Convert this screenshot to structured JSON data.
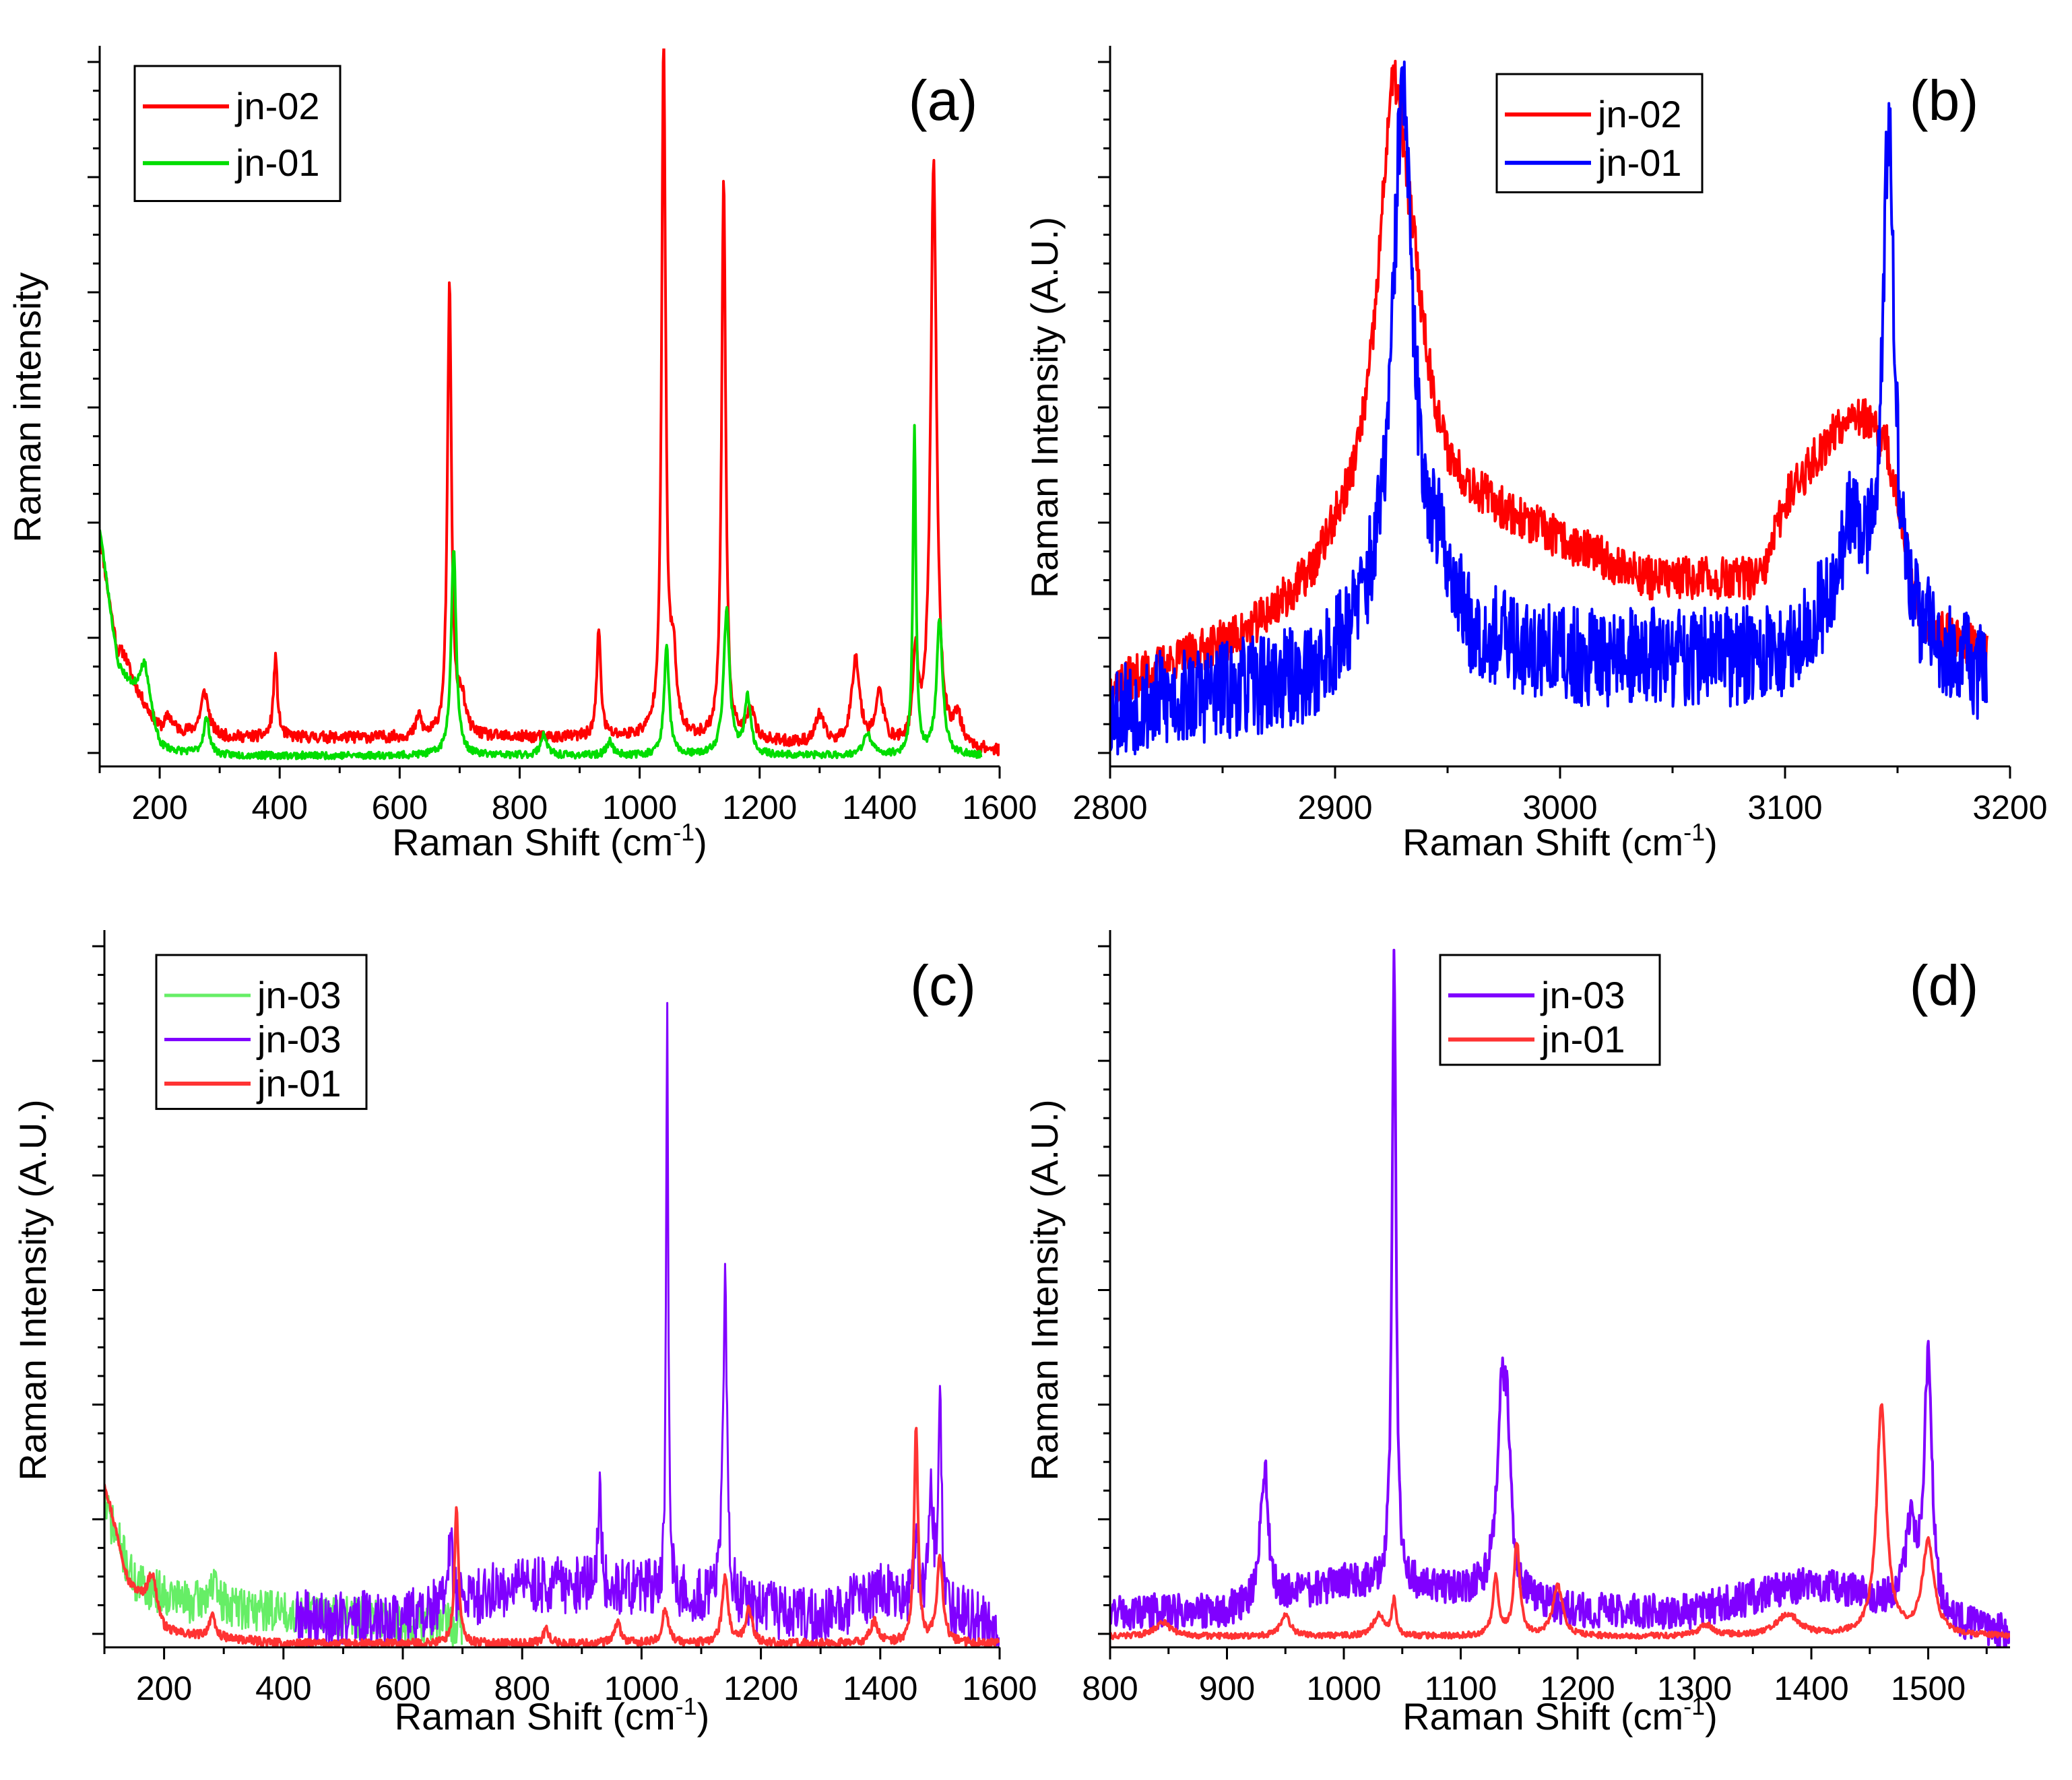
{
  "chart_data": [
    {
      "type": "line",
      "panel_label": "(a)",
      "xlabel": "Raman Shift (cm",
      "xlabel_sup": "-1",
      "xlabel_close": ")",
      "ylabel": "Raman intensity",
      "xlim": [
        100,
        1600
      ],
      "ylim": [
        0,
        100
      ],
      "xticks": [
        200,
        400,
        600,
        800,
        1000,
        1200,
        1400,
        1600
      ],
      "xtick_labels": [
        "200",
        "400",
        "600",
        "800",
        "1000",
        "1200",
        "1400",
        "1600"
      ],
      "legend_position": "top-left",
      "series": [
        {
          "name": "jn-02",
          "color": "#ff0000",
          "width": 4,
          "x_range": [
            100,
            1600
          ],
          "noise": 0.8,
          "seed": 11,
          "baseline": [
            [
              100,
              32
            ],
            [
              130,
              14
            ],
            [
              200,
              5
            ],
            [
              300,
              4
            ],
            [
              600,
              4
            ],
            [
              1000,
              4
            ],
            [
              1600,
              2
            ]
          ],
          "peaks": [
            [
              140,
              3,
              15
            ],
            [
              215,
              2,
              8
            ],
            [
              275,
              6,
              8
            ],
            [
              393,
              11,
              4
            ],
            [
              632,
              3,
              5
            ],
            [
              683,
              63,
              4
            ],
            [
              703,
              5,
              8
            ],
            [
              932,
              15,
              4
            ],
            [
              1040,
              96,
              4
            ],
            [
              1056,
              10,
              6
            ],
            [
              1140,
              79,
              4
            ],
            [
              1185,
              4,
              8
            ],
            [
              1300,
              4,
              8
            ],
            [
              1360,
              12,
              8
            ],
            [
              1400,
              7,
              8
            ],
            [
              1460,
              12,
              5
            ],
            [
              1490,
              81,
              6
            ],
            [
              1530,
              4,
              8
            ]
          ]
        },
        {
          "name": "jn-01",
          "color": "#00dd00",
          "width": 4,
          "x_range": [
            100,
            1570
          ],
          "noise": 0.5,
          "seed": 23,
          "baseline": [
            [
              100,
              33
            ],
            [
              130,
              14
            ],
            [
              200,
              2
            ],
            [
              300,
              1.5
            ],
            [
              1570,
              1.5
            ]
          ],
          "peaks": [
            [
              175,
              8,
              12
            ],
            [
              278,
              5,
              6
            ],
            [
              690,
              29,
              5
            ],
            [
              840,
              3,
              6
            ],
            [
              950,
              2,
              6
            ],
            [
              1045,
              15,
              5
            ],
            [
              1145,
              20,
              6
            ],
            [
              1180,
              8,
              6
            ],
            [
              1380,
              3,
              8
            ],
            [
              1458,
              46,
              3
            ],
            [
              1500,
              19,
              6
            ]
          ]
        }
      ]
    },
    {
      "type": "line",
      "panel_label": "(b)",
      "xlabel": "Raman Shift (cm",
      "xlabel_sup": "-1",
      "xlabel_close": ")",
      "ylabel": "Raman Intensity (A.U.)",
      "xlim": [
        2800,
        3200
      ],
      "ylim": [
        0,
        100
      ],
      "xticks": [
        2800,
        2900,
        3000,
        3100,
        3200
      ],
      "xtick_labels": [
        "2800",
        "2900",
        "3000",
        "3100",
        "3200"
      ],
      "legend_position": "top-center",
      "series": [
        {
          "name": "jn-02",
          "color": "#ff0000",
          "width": 4,
          "x_range": [
            2800,
            3190
          ],
          "noise": 3,
          "seed": 37,
          "baseline": [
            [
              2800,
              11
            ],
            [
              2860,
              18
            ],
            [
              2890,
              25
            ],
            [
              2900,
              30
            ],
            [
              2940,
              44
            ],
            [
              2950,
              38
            ],
            [
              3000,
              31
            ],
            [
              3040,
              26
            ],
            [
              3090,
              26
            ],
            [
              3100,
              37
            ],
            [
              3130,
              50
            ],
            [
              3145,
              45
            ],
            [
              3160,
              20
            ],
            [
              3190,
              16
            ]
          ],
          "peaks": [
            [
              2926,
              55,
              8
            ],
            [
              2935,
              8,
              4
            ]
          ]
        },
        {
          "name": "jn-01",
          "color": "#0000ff",
          "width": 4,
          "x_range": [
            2800,
            3190
          ],
          "noise": 7,
          "seed": 53,
          "baseline": [
            [
              2800,
              8
            ],
            [
              2890,
              12
            ],
            [
              2920,
              22
            ],
            [
              2945,
              28
            ],
            [
              2960,
              18
            ],
            [
              3000,
              15
            ],
            [
              3100,
              15
            ],
            [
              3130,
              25
            ],
            [
              3150,
              20
            ],
            [
              3190,
              12
            ]
          ],
          "peaks": [
            [
              2930,
              70,
              5
            ],
            [
              3146,
              68,
              3
            ],
            [
              3130,
              8,
              6
            ]
          ]
        }
      ]
    },
    {
      "type": "line",
      "panel_label": "(c)",
      "xlabel": "Raman Shift (cm",
      "xlabel_sup": "-1",
      "xlabel_close": ")",
      "ylabel": "Raman Intensity (A.U.)",
      "xlim": [
        100,
        1600
      ],
      "ylim": [
        0,
        100
      ],
      "xticks": [
        200,
        400,
        600,
        800,
        1000,
        1200,
        1400,
        1600
      ],
      "xtick_labels": [
        "200",
        "400",
        "600",
        "800",
        "1000",
        "1200",
        "1400",
        "1600"
      ],
      "legend_position": "top-left",
      "series": [
        {
          "name": "jn-03",
          "color": "#66ee66",
          "width": 3,
          "x_range": [
            100,
            700
          ],
          "noise": 3,
          "seed": 71,
          "baseline": [
            [
              100,
              20
            ],
            [
              150,
              9
            ],
            [
              250,
              6
            ],
            [
              700,
              3
            ]
          ],
          "peaks": [
            [
              280,
              3,
              10
            ]
          ]
        },
        {
          "name": "jn-03",
          "color": "#8000ff",
          "width": 3,
          "x_range": [
            420,
            1600
          ],
          "noise": 4,
          "seed": 89,
          "baseline": [
            [
              420,
              4
            ],
            [
              600,
              4
            ],
            [
              800,
              9
            ],
            [
              1000,
              8
            ],
            [
              1100,
              7
            ],
            [
              1300,
              4
            ],
            [
              1400,
              8
            ],
            [
              1600,
              3
            ]
          ],
          "peaks": [
            [
              680,
              10,
              4
            ],
            [
              930,
              15,
              3
            ],
            [
              1043,
              85,
              2
            ],
            [
              1140,
              44,
              4
            ],
            [
              1485,
              18,
              4
            ],
            [
              1500,
              32,
              3
            ],
            [
              1460,
              8,
              4
            ]
          ]
        },
        {
          "name": "jn-01",
          "color": "#ff3333",
          "width": 4,
          "x_range": [
            100,
            1600
          ],
          "noise": 0.6,
          "seed": 97,
          "baseline": [
            [
              100,
              23
            ],
            [
              140,
              9
            ],
            [
              200,
              2
            ],
            [
              400,
              0.5
            ],
            [
              1600,
              0.5
            ]
          ],
          "peaks": [
            [
              180,
              6,
              10
            ],
            [
              280,
              3,
              6
            ],
            [
              690,
              19,
              4
            ],
            [
              840,
              2,
              6
            ],
            [
              960,
              3,
              6
            ],
            [
              1040,
              5,
              6
            ],
            [
              1140,
              9,
              6
            ],
            [
              1180,
              5,
              6
            ],
            [
              1390,
              3,
              8
            ],
            [
              1460,
              30,
              4
            ],
            [
              1500,
              12,
              6
            ]
          ]
        }
      ]
    },
    {
      "type": "line",
      "panel_label": "(d)",
      "xlabel": "Raman Shift (cm",
      "xlabel_sup": "-1",
      "xlabel_close": ")",
      "ylabel": "Raman Intensity (A.U.)",
      "xlim": [
        800,
        1570
      ],
      "ylim": [
        0,
        100
      ],
      "xticks": [
        800,
        900,
        1000,
        1100,
        1200,
        1300,
        1400,
        1500
      ],
      "xtick_labels": [
        "800",
        "900",
        "1000",
        "1100",
        "1200",
        "1300",
        "1400",
        "1500"
      ],
      "legend_position": "top-center",
      "series": [
        {
          "name": "jn-03",
          "color": "#8000ff",
          "width": 4,
          "x_range": [
            800,
            1570
          ],
          "noise": 2.5,
          "seed": 131,
          "baseline": [
            [
              800,
              5
            ],
            [
              900,
              5
            ],
            [
              1000,
              9
            ],
            [
              1100,
              8
            ],
            [
              1200,
              5
            ],
            [
              1300,
              5
            ],
            [
              1400,
              9
            ],
            [
              1450,
              7
            ],
            [
              1520,
              3
            ],
            [
              1570,
              2
            ]
          ],
          "peaks": [
            [
              932,
              19,
              4
            ],
            [
              1043,
              89,
              2
            ],
            [
              1135,
              27,
              5
            ],
            [
              1140,
              16,
              3
            ],
            [
              1485,
              12,
              5
            ],
            [
              1500,
              36,
              4
            ]
          ]
        },
        {
          "name": "jn-01",
          "color": "#ff3333",
          "width": 4,
          "x_range": [
            800,
            1570
          ],
          "noise": 0.4,
          "seed": 151,
          "baseline": [
            [
              800,
              1.5
            ],
            [
              1570,
              1.5
            ]
          ],
          "peaks": [
            [
              845,
              2,
              8
            ],
            [
              950,
              3,
              5
            ],
            [
              1030,
              3,
              6
            ],
            [
              1043,
              5,
              2
            ],
            [
              1130,
              8,
              3
            ],
            [
              1148,
              13,
              3
            ],
            [
              1183,
              7,
              5
            ],
            [
              1310,
              1.5,
              8
            ],
            [
              1380,
              3,
              12
            ],
            [
              1460,
              32,
              5
            ],
            [
              1500,
              13,
              6
            ]
          ]
        }
      ]
    }
  ]
}
